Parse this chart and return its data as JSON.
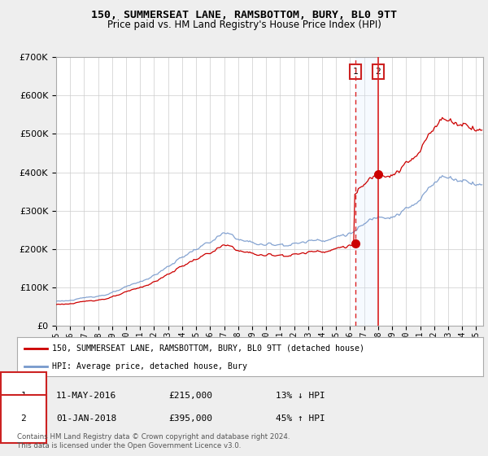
{
  "title": "150, SUMMERSEAT LANE, RAMSBOTTOM, BURY, BL0 9TT",
  "subtitle": "Price paid vs. HM Land Registry's House Price Index (HPI)",
  "legend_line1": "150, SUMMERSEAT LANE, RAMSBOTTOM, BURY, BL0 9TT (detached house)",
  "legend_line2": "HPI: Average price, detached house, Bury",
  "annotation1_date": "11-MAY-2016",
  "annotation1_price": "£215,000",
  "annotation1_pct": "13% ↓ HPI",
  "annotation2_date": "01-JAN-2018",
  "annotation2_price": "£395,000",
  "annotation2_pct": "45% ↑ HPI",
  "footnote1": "Contains HM Land Registry data © Crown copyright and database right 2024.",
  "footnote2": "This data is licensed under the Open Government Licence v3.0.",
  "sale1_year": 2016.37,
  "sale1_value": 215000,
  "sale2_year": 2018.0,
  "sale2_value": 395000,
  "hpi_color": "#7799cc",
  "price_color": "#cc0000",
  "vline_color": "#dd2222",
  "shade_color": "#ddeeff",
  "ylim": [
    0,
    700000
  ],
  "xlim_start": 1995,
  "xlim_end": 2025.5,
  "background_color": "#eeeeee",
  "plot_bg_color": "#ffffff",
  "grid_color": "#cccccc",
  "title_fontsize": 9.5,
  "subtitle_fontsize": 8.5
}
